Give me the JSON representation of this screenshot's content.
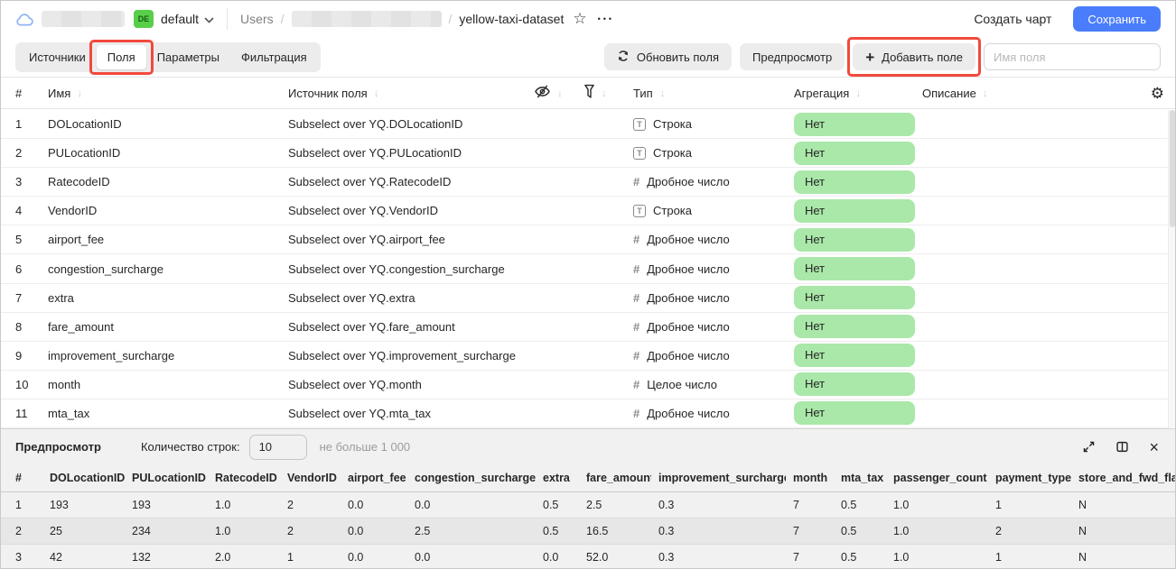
{
  "topbar": {
    "folder_badge": "DE",
    "folder_name": "default",
    "breadcrumb": {
      "root": "Users",
      "separator": "/",
      "current": "yellow-taxi-dataset"
    },
    "create_chart_label": "Создать чарт",
    "save_label": "Сохранить"
  },
  "tabs": [
    {
      "label": "Источники",
      "active": false
    },
    {
      "label": "Поля",
      "active": true,
      "annotated": true
    },
    {
      "label": "Параметры",
      "active": false
    },
    {
      "label": "Фильтрация",
      "active": false
    }
  ],
  "toolbar": {
    "refresh_fields_label": "Обновить поля",
    "preview_label": "Предпросмотр",
    "add_field_label": "Добавить поле",
    "plus_glyph": "+",
    "field_name_placeholder": "Имя поля"
  },
  "fields_table": {
    "headers": {
      "index": "#",
      "name": "Имя",
      "source": "Источник поля",
      "type": "Тип",
      "aggregation": "Агрегация",
      "description": "Описание"
    },
    "rows": [
      {
        "index": "1",
        "name": "DOLocationID",
        "source": "Subselect over YQ.DOLocationID",
        "type_kind": "string",
        "type": "Строка",
        "aggregation": "Нет",
        "description": ""
      },
      {
        "index": "2",
        "name": "PULocationID",
        "source": "Subselect over YQ.PULocationID",
        "type_kind": "string",
        "type": "Строка",
        "aggregation": "Нет",
        "description": ""
      },
      {
        "index": "3",
        "name": "RatecodeID",
        "source": "Subselect over YQ.RatecodeID",
        "type_kind": "number",
        "type": "Дробное число",
        "aggregation": "Нет",
        "description": ""
      },
      {
        "index": "4",
        "name": "VendorID",
        "source": "Subselect over YQ.VendorID",
        "type_kind": "string",
        "type": "Строка",
        "aggregation": "Нет",
        "description": ""
      },
      {
        "index": "5",
        "name": "airport_fee",
        "source": "Subselect over YQ.airport_fee",
        "type_kind": "number",
        "type": "Дробное число",
        "aggregation": "Нет",
        "description": ""
      },
      {
        "index": "6",
        "name": "congestion_surcharge",
        "source": "Subselect over YQ.congestion_surcharge",
        "type_kind": "number",
        "type": "Дробное число",
        "aggregation": "Нет",
        "description": ""
      },
      {
        "index": "7",
        "name": "extra",
        "source": "Subselect over YQ.extra",
        "type_kind": "number",
        "type": "Дробное число",
        "aggregation": "Нет",
        "description": ""
      },
      {
        "index": "8",
        "name": "fare_amount",
        "source": "Subselect over YQ.fare_amount",
        "type_kind": "number",
        "type": "Дробное число",
        "aggregation": "Нет",
        "description": ""
      },
      {
        "index": "9",
        "name": "improvement_surcharge",
        "source": "Subselect over YQ.improvement_surcharge",
        "type_kind": "number",
        "type": "Дробное число",
        "aggregation": "Нет",
        "description": ""
      },
      {
        "index": "10",
        "name": "month",
        "source": "Subselect over YQ.month",
        "type_kind": "number",
        "type": "Целое число",
        "aggregation": "Нет",
        "description": ""
      },
      {
        "index": "11",
        "name": "mta_tax",
        "source": "Subselect over YQ.mta_tax",
        "type_kind": "number",
        "type": "Дробное число",
        "aggregation": "Нет",
        "description": ""
      }
    ]
  },
  "preview": {
    "title": "Предпросмотр",
    "row_count_label": "Количество строк:",
    "row_count_value": "10",
    "row_count_hint": "не больше 1 000",
    "table": {
      "headers": [
        "#",
        "DOLocationID",
        "PULocationID",
        "RatecodeID",
        "VendorID",
        "airport_fee",
        "congestion_surcharge",
        "extra",
        "fare_amount",
        "improvement_surcharge",
        "month",
        "mta_tax",
        "passenger_count",
        "payment_type",
        "store_and_fwd_flag"
      ],
      "rows": [
        [
          "1",
          "193",
          "193",
          "1.0",
          "2",
          "0.0",
          "0.0",
          "0.5",
          "2.5",
          "0.3",
          "7",
          "0.5",
          "1.0",
          "1",
          "N"
        ],
        [
          "2",
          "25",
          "234",
          "1.0",
          "2",
          "0.0",
          "2.5",
          "0.5",
          "16.5",
          "0.3",
          "7",
          "0.5",
          "1.0",
          "2",
          "N"
        ],
        [
          "3",
          "42",
          "132",
          "2.0",
          "1",
          "0.0",
          "0.0",
          "0.0",
          "52.0",
          "0.3",
          "7",
          "0.5",
          "1.0",
          "1",
          "N"
        ]
      ]
    }
  },
  "icons": {
    "topbar": [
      "cloud-icon",
      "chevron-down-icon",
      "star-icon",
      "ellipsis-icon"
    ],
    "toolbar": [
      "refresh-icon",
      "plus-icon"
    ],
    "fields_header": [
      "eye-off-icon",
      "funnel-icon",
      "sort-arrow-icon",
      "gear-icon"
    ],
    "type_icons": [
      "string-type-icon",
      "number-type-icon"
    ],
    "preview": [
      "expand-icon",
      "split-view-icon",
      "close-icon"
    ]
  },
  "colors": {
    "accent_blue": "#4a7dfc",
    "folder_badge_green": "#58cf4a",
    "aggregation_pill_green": "#a9e8a9",
    "annotation_red": "#f2493d"
  }
}
